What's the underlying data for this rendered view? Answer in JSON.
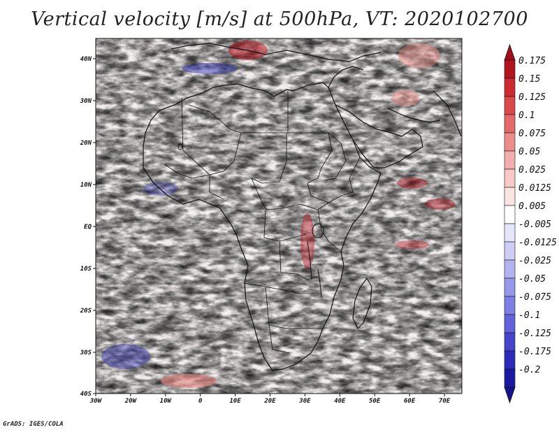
{
  "title": "Vertical velocity [m/s] at 500hPa, VT: 2020102700",
  "credit": "GrADS: IGES/COLA",
  "lon_ticks": [
    "30W",
    "20W",
    "10W",
    "0",
    "10E",
    "20E",
    "30E",
    "40E",
    "50E",
    "60E",
    "70E"
  ],
  "lat_ticks": [
    "40N",
    "30N",
    "20N",
    "10N",
    "EQ",
    "10S",
    "20S",
    "30S",
    "40S"
  ],
  "colorbar": {
    "labels": [
      "0.175",
      "0.15",
      "0.125",
      "0.1",
      "0.075",
      "0.05",
      "0.025",
      "0.0125",
      "0.005",
      "-0.005",
      "-0.0125",
      "-0.025",
      "-0.05",
      "-0.075",
      "-0.1",
      "-0.125",
      "-0.175",
      "-0.2"
    ],
    "colors": [
      "#b0141e",
      "#cc2a30",
      "#d9484a",
      "#e3696a",
      "#ec8d8c",
      "#f2aeac",
      "#f7cac8",
      "#fbe4e2",
      "#ffffff",
      "#e6e6fb",
      "#cdcdf6",
      "#b3b3f0",
      "#9898ea",
      "#7e7ee3",
      "#6262d9",
      "#4545cc",
      "#2c2cba",
      "#1a1aa0"
    ],
    "top_color": "#a00f1a",
    "bottom_color": "#15138a"
  },
  "map_colors": {
    "neutral": "#f3efee",
    "up_red": "#e8847f",
    "down_blue": "#7b7be6",
    "strong_red": "#b0141e",
    "strong_blue": "#2a2ab5"
  }
}
